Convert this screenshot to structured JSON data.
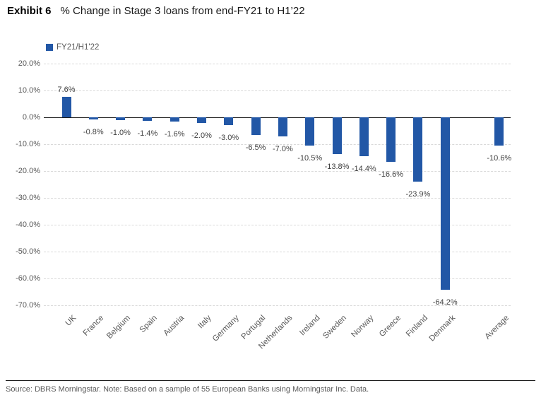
{
  "header": {
    "exhibit": "Exhibit 6",
    "title": "% Change in Stage 3 loans from end-FY21 to H1’22"
  },
  "legend": {
    "label": "FY21/H1'22",
    "color": "#2257A6"
  },
  "footer": {
    "source": "Source: DBRS Morningstar. Note: Based on a sample of 55 European Banks using Morningstar Inc. Data."
  },
  "chart_data": {
    "type": "bar",
    "title": "% Change in Stage 3 loans from end-FY21 to H1'22",
    "exhibit": "Exhibit 6",
    "legend_entries": [
      "FY21/H1'22"
    ],
    "legend_position": "top-left",
    "categories": [
      "UK",
      "France",
      "Belgium",
      "Spain",
      "Austria",
      "Italy",
      "Germany",
      "Portugal",
      "Netherlands",
      "Ireland",
      "Sweden",
      "Norway",
      "Greece",
      "Finland",
      "Denmark",
      "Average"
    ],
    "values": [
      7.6,
      -0.8,
      -1.0,
      -1.4,
      -1.6,
      -2.0,
      -3.0,
      -6.5,
      -7.0,
      -10.5,
      -13.8,
      -14.4,
      -16.6,
      -23.9,
      -64.2,
      -10.6
    ],
    "value_labels": [
      "7.6%",
      "-0.8%",
      "-1.0%",
      "-1.4%",
      "-1.6%",
      "-2.0%",
      "-3.0%",
      "-6.5%",
      "-7.0%",
      "-10.5%",
      "-13.8%",
      "-14.4%",
      "-16.6%",
      "-23.9%",
      "-64.2%",
      "-10.6%"
    ],
    "yticks": [
      "20.0%",
      "10.0%",
      "0.0%",
      "-10.0%",
      "-20.0%",
      "-30.0%",
      "-40.0%",
      "-50.0%",
      "-60.0%",
      "-70.0%"
    ],
    "ylim": [
      -70,
      20
    ],
    "ytick_step": 10,
    "grid": "horizontal-dashed",
    "bar_color": "#2257A6",
    "gap_before_last": true,
    "xlabel_rotation_deg": -45
  }
}
